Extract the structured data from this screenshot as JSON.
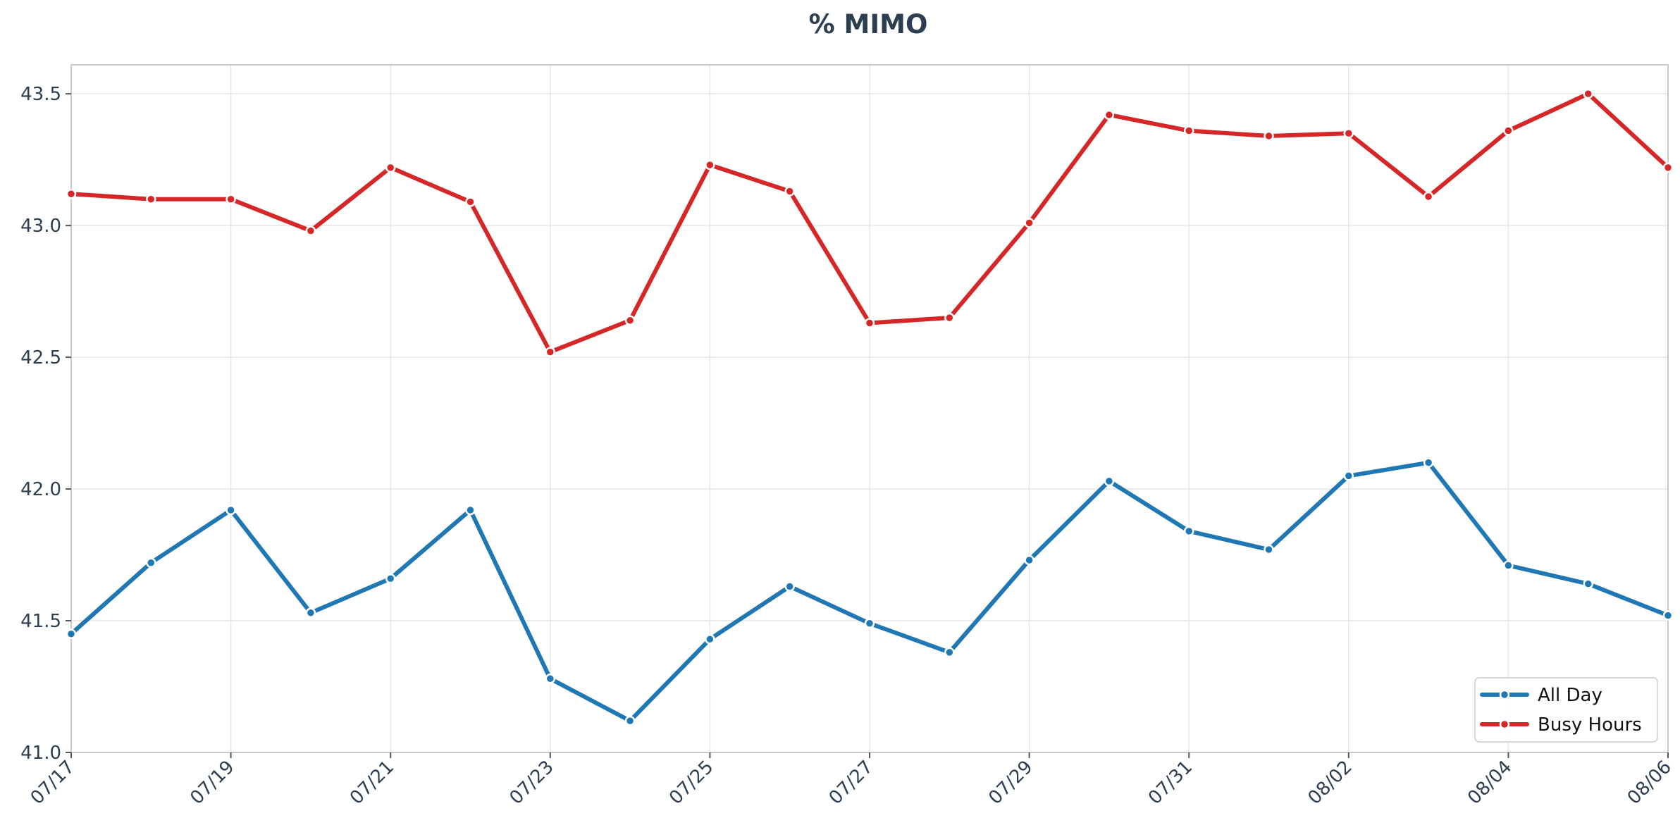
{
  "chart_data": {
    "type": "line",
    "title": "% MIMO",
    "xlabel": "",
    "ylabel": "",
    "x": [
      "07/17",
      "07/18",
      "07/19",
      "07/20",
      "07/21",
      "07/22",
      "07/23",
      "07/24",
      "07/25",
      "07/26",
      "07/27",
      "07/28",
      "07/29",
      "07/30",
      "07/31",
      "08/01",
      "08/02",
      "08/03",
      "08/04",
      "08/05",
      "08/06"
    ],
    "x_tick_labels": [
      "07/17",
      "07/19",
      "07/21",
      "07/23",
      "07/25",
      "07/27",
      "07/29",
      "07/31",
      "08/02",
      "08/04",
      "08/06"
    ],
    "y_tick_labels": [
      "41.0",
      "41.5",
      "42.0",
      "42.5",
      "43.0",
      "43.5"
    ],
    "ylim": [
      41.0,
      43.61
    ],
    "grid": true,
    "legend_position": "bottom-right",
    "series": [
      {
        "name": "All Day",
        "color": "#1f77b4",
        "values": [
          41.45,
          41.72,
          41.92,
          41.53,
          41.66,
          41.92,
          41.28,
          41.12,
          41.43,
          41.63,
          41.49,
          41.38,
          41.73,
          42.03,
          41.84,
          41.77,
          42.05,
          42.1,
          41.71,
          41.64,
          41.52
        ]
      },
      {
        "name": "Busy Hours",
        "color": "#d62728",
        "values": [
          43.12,
          43.1,
          43.1,
          42.98,
          43.22,
          43.09,
          42.52,
          42.64,
          43.23,
          43.13,
          42.63,
          42.65,
          43.01,
          43.42,
          43.36,
          43.34,
          43.35,
          43.11,
          43.36,
          43.5,
          43.22
        ]
      }
    ]
  }
}
